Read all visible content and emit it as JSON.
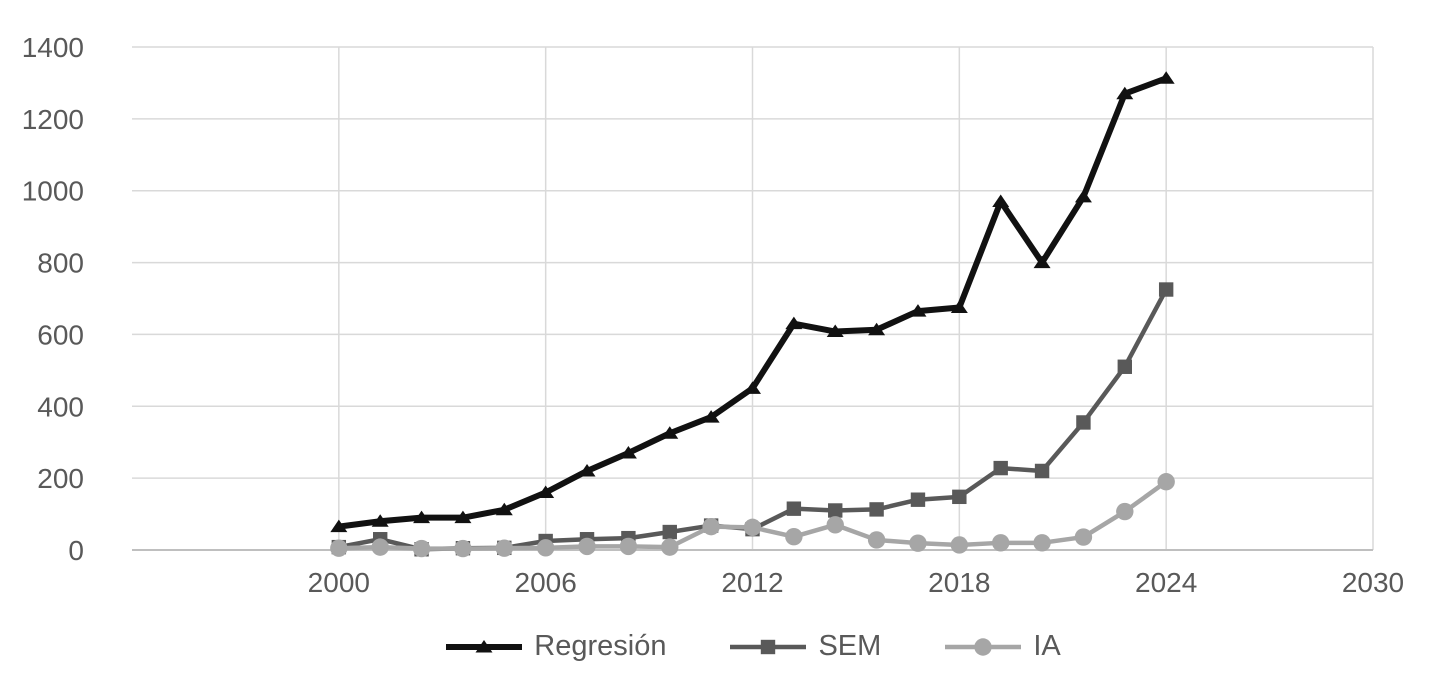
{
  "chart_data": {
    "type": "line",
    "title": "",
    "xlabel": "",
    "ylabel": "",
    "x": [
      2000,
      2001.2,
      2002.4,
      2003.6,
      2004.8,
      2006,
      2007.2,
      2008.4,
      2009.6,
      2010.8,
      2012,
      2013.2,
      2014.4,
      2015.6,
      2016.8,
      2018,
      2019.2,
      2020.4,
      2021.6,
      2022.8,
      2024
    ],
    "series": [
      {
        "name": "Regresión",
        "marker": "triangle",
        "color": "#111111",
        "line_width": 6,
        "values": [
          65,
          80,
          90,
          90,
          112,
          160,
          220,
          270,
          325,
          370,
          450,
          630,
          608,
          613,
          665,
          675,
          970,
          800,
          983,
          1270,
          1313
        ]
      },
      {
        "name": "SEM",
        "marker": "square",
        "color": "#595959",
        "line_width": 4.5,
        "values": [
          8,
          30,
          2,
          5,
          6,
          25,
          30,
          33,
          50,
          68,
          58,
          115,
          110,
          113,
          140,
          148,
          228,
          220,
          355,
          510,
          725
        ]
      },
      {
        "name": "IA",
        "marker": "circle",
        "color": "#a6a6a6",
        "line_width": 4.5,
        "values": [
          5,
          8,
          4,
          4,
          5,
          6,
          10,
          10,
          8,
          65,
          63,
          37,
          70,
          28,
          19,
          14,
          20,
          20,
          36,
          107,
          190
        ]
      }
    ],
    "xlim": [
      1994,
      2030
    ],
    "ylim": [
      0,
      1400
    ],
    "x_ticks": [
      2000,
      2006,
      2012,
      2018,
      2024,
      2030
    ],
    "y_ticks": [
      0,
      200,
      400,
      600,
      800,
      1000,
      1200,
      1400
    ],
    "grid": true,
    "legend_position": "bottom",
    "colors": {
      "background": "#ffffff",
      "gridline": "#d9d9d9",
      "axis_line": "#bfbfbf",
      "tick_text": "#595959"
    }
  }
}
